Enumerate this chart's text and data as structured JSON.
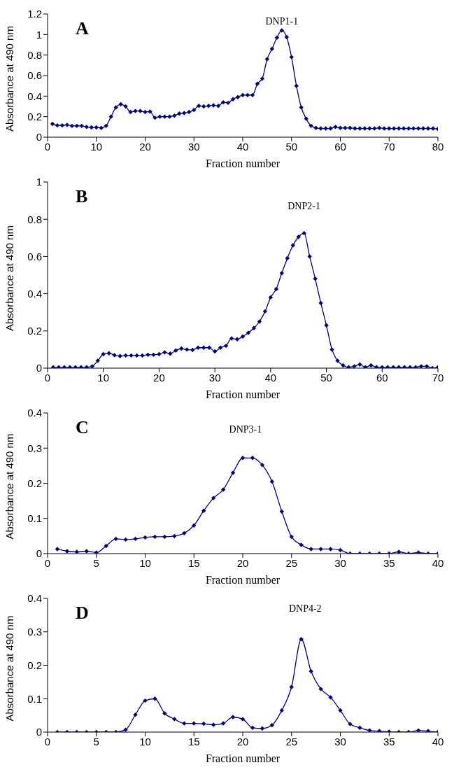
{
  "chart_data": [
    {
      "type": "line",
      "xlabel": "Fraction number",
      "ylabel": "Absorbance at 490 nm",
      "annotations": [
        "A",
        "DNP1-1"
      ],
      "color": "#000080",
      "marker": "diamond",
      "grid": false,
      "legend": false,
      "x": [
        1,
        2,
        3,
        4,
        5,
        6,
        7,
        8,
        9,
        10,
        11,
        12,
        13,
        14,
        15,
        16,
        17,
        18,
        19,
        20,
        21,
        22,
        23,
        24,
        25,
        26,
        27,
        28,
        29,
        30,
        31,
        32,
        33,
        34,
        35,
        36,
        37,
        38,
        39,
        40,
        41,
        42,
        43,
        44,
        45,
        46,
        47,
        48,
        49,
        50,
        51,
        52,
        53,
        54,
        55,
        56,
        57,
        58,
        59,
        60,
        61,
        62,
        63,
        64,
        65,
        66,
        67,
        68,
        69,
        70,
        71,
        72,
        73,
        74,
        75,
        76,
        77,
        78,
        79,
        80
      ],
      "values": [
        0.13,
        0.115,
        0.115,
        0.12,
        0.11,
        0.11,
        0.11,
        0.1,
        0.095,
        0.095,
        0.09,
        0.11,
        0.2,
        0.29,
        0.32,
        0.3,
        0.245,
        0.255,
        0.255,
        0.245,
        0.25,
        0.19,
        0.2,
        0.2,
        0.2,
        0.21,
        0.23,
        0.235,
        0.245,
        0.265,
        0.305,
        0.3,
        0.305,
        0.31,
        0.305,
        0.34,
        0.335,
        0.37,
        0.39,
        0.41,
        0.41,
        0.41,
        0.52,
        0.57,
        0.76,
        0.86,
        0.97,
        1.04,
        0.975,
        0.78,
        0.5,
        0.29,
        0.18,
        0.11,
        0.09,
        0.085,
        0.085,
        0.085,
        0.1,
        0.09,
        0.09,
        0.09,
        0.085,
        0.085,
        0.085,
        0.085,
        0.085,
        0.09,
        0.085,
        0.085,
        0.085,
        0.085,
        0.085,
        0.085,
        0.085,
        0.085,
        0.085,
        0.085,
        0.085,
        0.08
      ],
      "xlim": [
        0,
        80
      ],
      "xticks": [
        0,
        10,
        20,
        30,
        40,
        50,
        60,
        70,
        80
      ],
      "ylim": [
        0,
        1.2
      ],
      "yticks": [
        0,
        0.2,
        0.4,
        0.6,
        0.8,
        1,
        1.2
      ]
    },
    {
      "type": "line",
      "xlabel": "Fraction number",
      "ylabel": "Absorbance at 490 nm",
      "annotations": [
        "B",
        "DNP2-1"
      ],
      "color": "#000080",
      "marker": "diamond",
      "grid": false,
      "legend": false,
      "x": [
        1,
        2,
        3,
        4,
        5,
        6,
        7,
        8,
        9,
        10,
        11,
        12,
        13,
        14,
        15,
        16,
        17,
        18,
        19,
        20,
        21,
        22,
        23,
        24,
        25,
        26,
        27,
        28,
        29,
        30,
        31,
        32,
        33,
        34,
        35,
        36,
        37,
        38,
        39,
        40,
        41,
        42,
        43,
        44,
        45,
        46,
        47,
        48,
        49,
        50,
        51,
        52,
        53,
        54,
        55,
        56,
        57,
        58,
        59,
        60,
        61,
        62,
        63,
        64,
        65,
        66,
        67,
        68,
        69,
        70
      ],
      "values": [
        0.005,
        0.005,
        0.005,
        0.005,
        0.005,
        0.005,
        0.005,
        0.01,
        0.04,
        0.075,
        0.08,
        0.07,
        0.065,
        0.068,
        0.068,
        0.068,
        0.068,
        0.072,
        0.072,
        0.075,
        0.085,
        0.078,
        0.095,
        0.105,
        0.1,
        0.098,
        0.11,
        0.11,
        0.11,
        0.09,
        0.11,
        0.12,
        0.16,
        0.155,
        0.17,
        0.19,
        0.215,
        0.25,
        0.305,
        0.38,
        0.425,
        0.51,
        0.59,
        0.66,
        0.705,
        0.725,
        0.6,
        0.48,
        0.35,
        0.23,
        0.1,
        0.04,
        0.015,
        0.005,
        0.01,
        0.02,
        0.005,
        0.015,
        0.005,
        0.005,
        0.005,
        0.005,
        0.005,
        0.005,
        0.005,
        0.005,
        0.01,
        0.01,
        0.0,
        0.005
      ],
      "xlim": [
        0,
        70
      ],
      "xticks": [
        0,
        10,
        20,
        30,
        40,
        50,
        60,
        70
      ],
      "ylim": [
        0,
        1
      ],
      "yticks": [
        0,
        0.2,
        0.4,
        0.6,
        0.8,
        1
      ]
    },
    {
      "type": "line",
      "xlabel": "Fraction number",
      "ylabel": "Absorbance at 490 nm",
      "annotations": [
        "C",
        "DNP3-1"
      ],
      "color": "#000080",
      "marker": "diamond",
      "grid": false,
      "legend": false,
      "x": [
        1,
        2,
        3,
        4,
        5,
        6,
        7,
        8,
        9,
        10,
        11,
        12,
        13,
        14,
        15,
        16,
        17,
        18,
        19,
        20,
        21,
        22,
        23,
        24,
        25,
        26,
        27,
        28,
        29,
        30,
        31,
        32,
        33,
        34,
        35,
        36,
        37,
        38,
        39,
        40
      ],
      "values": [
        0.013,
        0.007,
        0.005,
        0.007,
        0.003,
        0.022,
        0.042,
        0.04,
        0.042,
        0.046,
        0.048,
        0.048,
        0.05,
        0.058,
        0.08,
        0.122,
        0.158,
        0.182,
        0.23,
        0.272,
        0.272,
        0.252,
        0.205,
        0.12,
        0.048,
        0.025,
        0.013,
        0.013,
        0.013,
        0.01,
        0,
        0,
        0,
        0,
        0,
        0.005,
        0,
        0.003,
        0,
        0
      ],
      "xlim": [
        0,
        40
      ],
      "xticks": [
        0,
        5,
        10,
        15,
        20,
        25,
        30,
        35,
        40
      ],
      "ylim": [
        0,
        0.4
      ],
      "yticks": [
        0,
        0.1,
        0.2,
        0.3,
        0.4
      ]
    },
    {
      "type": "line",
      "xlabel": "Fraction number",
      "ylabel": "Absorbance at 490 nm",
      "annotations": [
        "D",
        "DNP4-2"
      ],
      "color": "#000080",
      "marker": "diamond",
      "grid": false,
      "legend": false,
      "x": [
        1,
        2,
        3,
        4,
        5,
        6,
        7,
        8,
        9,
        10,
        11,
        12,
        13,
        14,
        15,
        16,
        17,
        18,
        19,
        20,
        21,
        22,
        23,
        24,
        25,
        26,
        27,
        28,
        29,
        30,
        31,
        32,
        33,
        34,
        35,
        36,
        37,
        38,
        39,
        40
      ],
      "values": [
        0,
        0,
        0,
        0,
        0,
        0,
        0,
        0.007,
        0.052,
        0.094,
        0.1,
        0.056,
        0.039,
        0.026,
        0.026,
        0.025,
        0.022,
        0.026,
        0.045,
        0.039,
        0.013,
        0.011,
        0.021,
        0.065,
        0.135,
        0.278,
        0.182,
        0.129,
        0.104,
        0.065,
        0.024,
        0.013,
        0.005,
        0.003,
        0.001,
        0,
        0,
        0.005,
        0.003,
        0
      ],
      "xlim": [
        0,
        40
      ],
      "xticks": [
        0,
        5,
        10,
        15,
        20,
        25,
        30,
        35,
        40
      ],
      "ylim": [
        0,
        0.4
      ],
      "yticks": [
        0,
        0.1,
        0.2,
        0.3,
        0.4
      ]
    }
  ]
}
